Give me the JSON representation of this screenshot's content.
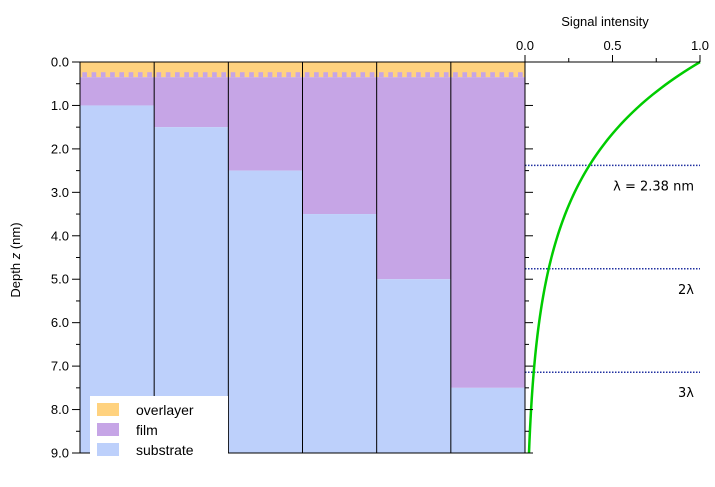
{
  "chart_data": [
    {
      "type": "bar",
      "orientation": "vertical-stacked-from-top",
      "ylabel_prefix": "Depth ",
      "ylabel_var": "z",
      "ylabel_suffix": " (nm)",
      "ylim": [
        0.0,
        9.0
      ],
      "y_inverted": true,
      "yticks": [
        "0.0",
        "1.0",
        "2.0",
        "3.0",
        "4.0",
        "5.0",
        "6.0",
        "7.0",
        "8.0",
        "9.0"
      ],
      "yticks_values": [
        0,
        1,
        2,
        3,
        4,
        5,
        6,
        7,
        8,
        9
      ],
      "grid": false,
      "legend_placement": "bottom-left",
      "series": [
        {
          "name": "overlayer",
          "color": "#FFD27F",
          "top": [
            0,
            0,
            0,
            0,
            0,
            0
          ],
          "bottom": [
            0.35,
            0.35,
            0.35,
            0.35,
            0.35,
            0.35
          ]
        },
        {
          "name": "film",
          "color": "#C6A5E6",
          "top": [
            0.35,
            0.35,
            0.35,
            0.35,
            0.35,
            0.35
          ],
          "bottom": [
            1.0,
            1.5,
            2.5,
            3.5,
            5.0,
            7.5
          ]
        },
        {
          "name": "substrate",
          "color": "#BDD0FB",
          "top": [
            1.0,
            1.5,
            2.5,
            3.5,
            5.0,
            7.5
          ],
          "bottom": [
            9,
            9,
            9,
            9,
            9,
            9
          ]
        }
      ],
      "columns": 6
    },
    {
      "type": "line",
      "xlabel": "Signal intensity",
      "xlim": [
        0.0,
        1.0
      ],
      "xticks": [
        "0.0",
        "0.5",
        "1.0"
      ],
      "xticks_values": [
        0.0,
        0.5,
        1.0
      ],
      "ylim": [
        0.0,
        9.0
      ],
      "y_inverted": true,
      "series": [
        {
          "color": "#00CC00",
          "function": "exp(-z/2.38)",
          "lambda": 2.38,
          "y": [
            0,
            1,
            2,
            3,
            4,
            5,
            6,
            7,
            8,
            9
          ]
        }
      ],
      "reference_lines": [
        {
          "depth": 2.38,
          "label": "λ = 2.38 nm",
          "color": "#2030A0"
        },
        {
          "depth": 4.76,
          "label": "2λ",
          "color": "#2030A0"
        },
        {
          "depth": 7.14,
          "label": "3λ",
          "color": "#2030A0"
        }
      ]
    }
  ]
}
